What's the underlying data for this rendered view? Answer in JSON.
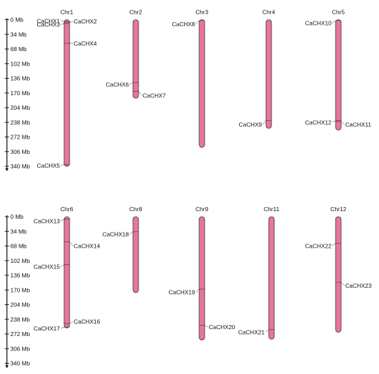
{
  "colors": {
    "chromosome_fill": "#e8769a",
    "outline": "#333333",
    "axis": "#111111"
  },
  "panels": [
    {
      "scale": {
        "unit": "Mb",
        "ticks": [
          0,
          34,
          68,
          102,
          136,
          170,
          204,
          238,
          272,
          306,
          340
        ],
        "tick_labels": [
          "0 Mb",
          "34 Mb",
          "68 Mb",
          "102 Mb",
          "136 Mb",
          "170 Mb",
          "204 Mb",
          "238 Mb",
          "272 Mb",
          "306 Mb",
          "340 Mb"
        ]
      },
      "chromosomes": [
        {
          "name": "Chr1",
          "length": 340,
          "genes": [
            {
              "name": "CaCHX1",
              "pos": 4,
              "side": "left",
              "label_pos": 3
            },
            {
              "name": "CaCHX2",
              "pos": 6,
              "side": "right",
              "label_pos": 4
            },
            {
              "name": "CaCHX3",
              "pos": 9,
              "side": "left",
              "label_pos": 11
            },
            {
              "name": "CaCHX4",
              "pos": 55,
              "side": "right",
              "label_pos": 55
            },
            {
              "name": "CaCHX5",
              "pos": 336,
              "side": "left",
              "label_pos": 338
            }
          ]
        },
        {
          "name": "Chr2",
          "length": 182,
          "genes": [
            {
              "name": "CaCHX6",
              "pos": 146,
              "side": "left",
              "label_pos": 150
            },
            {
              "name": "CaCHX7",
              "pos": 166,
              "side": "right",
              "label_pos": 176
            }
          ]
        },
        {
          "name": "Chr3",
          "length": 296,
          "genes": [
            {
              "name": "CaCHX8",
              "pos": 2,
              "side": "left",
              "label_pos": 10
            }
          ]
        },
        {
          "name": "Chr4",
          "length": 252,
          "genes": [
            {
              "name": "CaCHX9",
              "pos": 234,
              "side": "left",
              "label_pos": 243
            }
          ]
        },
        {
          "name": "Chr5",
          "length": 256,
          "genes": [
            {
              "name": "CaCHX10",
              "pos": 2,
              "side": "left",
              "label_pos": 8
            },
            {
              "name": "CaCHX12",
              "pos": 234,
              "side": "left",
              "label_pos": 238
            },
            {
              "name": "CaCHX11",
              "pos": 236,
              "side": "right",
              "label_pos": 243
            }
          ]
        }
      ]
    },
    {
      "scale": {
        "unit": "Mb",
        "ticks": [
          0,
          34,
          68,
          102,
          136,
          170,
          204,
          238,
          272,
          306,
          340
        ],
        "tick_labels": [
          "0 Mb",
          "34 Mb",
          "68 Mb",
          "102 Mb",
          "136 Mb",
          "170 Mb",
          "204 Mb",
          "238 Mb",
          "272 Mb",
          "306 Mb",
          "340 Mb"
        ]
      },
      "chromosomes": [
        {
          "name": "Chr6",
          "length": 258,
          "genes": [
            {
              "name": "CaCHX13",
              "pos": 6,
              "side": "left",
              "label_pos": 10
            },
            {
              "name": "CaCHX14",
              "pos": 58,
              "side": "right",
              "label_pos": 68
            },
            {
              "name": "CaCHX15",
              "pos": 111,
              "side": "left",
              "label_pos": 116
            },
            {
              "name": "CaCHX16",
              "pos": 248,
              "side": "right",
              "label_pos": 243
            },
            {
              "name": "CaCHX17",
              "pos": 256,
              "side": "left",
              "label_pos": 259
            }
          ]
        },
        {
          "name": "Chr8",
          "length": 176,
          "genes": [
            {
              "name": "CaCHX18",
              "pos": 35,
              "side": "left",
              "label_pos": 41
            }
          ]
        },
        {
          "name": "Chr9",
          "length": 286,
          "genes": [
            {
              "name": "CaCHX19",
              "pos": 168,
              "side": "left",
              "label_pos": 175
            },
            {
              "name": "CaCHX20",
              "pos": 252,
              "side": "right",
              "label_pos": 256
            }
          ]
        },
        {
          "name": "Chr11",
          "length": 284,
          "genes": [
            {
              "name": "CaCHX21",
              "pos": 262,
              "side": "left",
              "label_pos": 268
            }
          ]
        },
        {
          "name": "Chr12",
          "length": 268,
          "genes": [
            {
              "name": "CaCHX22",
              "pos": 62,
              "side": "left",
              "label_pos": 68
            },
            {
              "name": "CaCHX23",
              "pos": 152,
              "side": "right",
              "label_pos": 160
            }
          ]
        }
      ]
    }
  ]
}
